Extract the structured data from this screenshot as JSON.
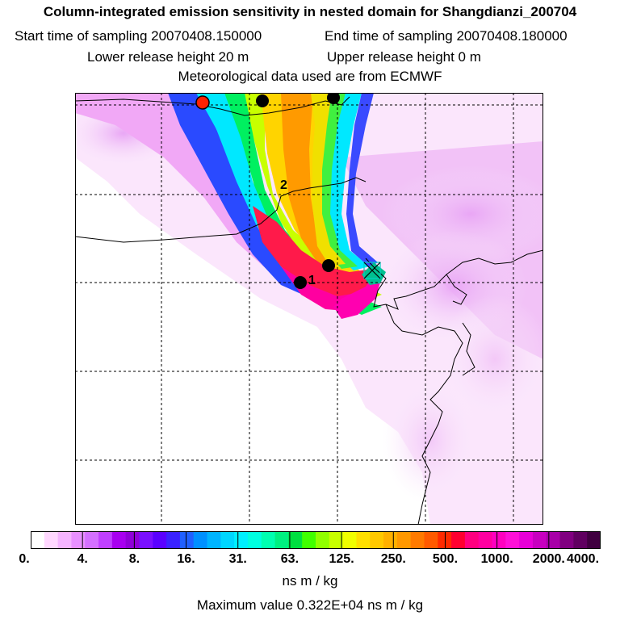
{
  "header": {
    "title": "Column-integrated emission sensitivity in nested domain for Shangdianzi_200704",
    "start_label": "Start time of sampling 20070408.150000",
    "end_label": "End time of sampling 20070408.180000",
    "lower_label": "Lower release height   20 m",
    "upper_label": "Upper release height    0 m",
    "met_label": "Meteorological data used are from ECMWF"
  },
  "map": {
    "markers": [
      {
        "label": "1",
        "color": "#000000"
      },
      {
        "label": "2",
        "color": "#000000"
      }
    ],
    "origin_marker_color": "#ff2200",
    "plume_colors": [
      "#ff66ff",
      "#0044ff",
      "#00ffff",
      "#00ff66",
      "#ddff00",
      "#ffcc00",
      "#ff8800",
      "#ff0066",
      "#e000aa"
    ]
  },
  "legend": {
    "tick_labels": [
      "0.",
      "4.",
      "8.",
      "16.",
      "31.",
      "63.",
      "125.",
      "250.",
      "500.",
      "1000.",
      "2000.",
      "4000."
    ],
    "colors": [
      "#ffffff",
      "#ffd7ff",
      "#f5b4ff",
      "#e890ff",
      "#d470ff",
      "#c040ff",
      "#a800f0",
      "#9000d8",
      "#7a10ff",
      "#5a00ff",
      "#3a22ff",
      "#2060ff",
      "#0090ff",
      "#00b4ff",
      "#00d6ff",
      "#00f0ff",
      "#00ffe0",
      "#00ffb0",
      "#00f080",
      "#00e040",
      "#40ff00",
      "#90ff00",
      "#c8ff00",
      "#f0ff00",
      "#ffe000",
      "#ffc800",
      "#ffb000",
      "#ff9800",
      "#ff7a00",
      "#ff5a00",
      "#ff2a00",
      "#ff0030",
      "#ff0080",
      "#ff00a0",
      "#ff00c0",
      "#ff10d8",
      "#e800d8",
      "#c800c0",
      "#a800a8",
      "#800080",
      "#600060",
      "#400040"
    ],
    "units": "ns m / kg",
    "max_value": "Maximum value  0.322E+04 ns m / kg"
  }
}
